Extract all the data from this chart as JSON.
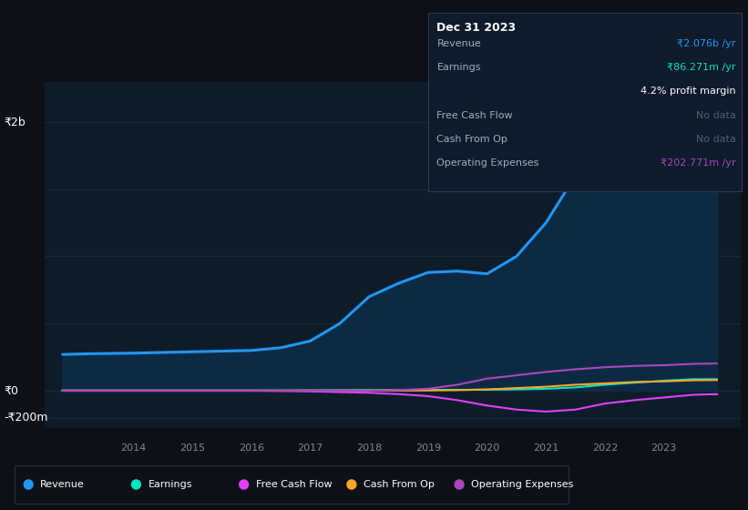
{
  "background_color": "#0d1117",
  "plot_bg_color": "#0e1c2a",
  "grid_color": "#1c2e3e",
  "ylabel_top": "₹2b",
  "ylabel_zero": "₹0",
  "ylabel_bottom": "-₹200m",
  "legend_items": [
    "Revenue",
    "Earnings",
    "Free Cash Flow",
    "Cash From Op",
    "Operating Expenses"
  ],
  "legend_colors": [
    "#2196f3",
    "#00e5c3",
    "#e040fb",
    "#ffa726",
    "#ab47bc"
  ],
  "revenue_color": "#2196f3",
  "revenue_fill": "#0d2a45",
  "earnings_color": "#00e5c3",
  "free_cash_flow_color": "#e040fb",
  "cash_from_op_color": "#ffa726",
  "operating_expenses_color": "#ab47bc",
  "x": [
    2012.8,
    2013.2,
    2013.7,
    2014.0,
    2014.5,
    2015.0,
    2015.5,
    2016.0,
    2016.5,
    2017.0,
    2017.5,
    2018.0,
    2018.5,
    2019.0,
    2019.5,
    2020.0,
    2020.5,
    2021.0,
    2021.5,
    2022.0,
    2022.5,
    2023.0,
    2023.5,
    2023.9
  ],
  "revenue": [
    270,
    275,
    278,
    280,
    285,
    290,
    295,
    300,
    320,
    370,
    500,
    700,
    800,
    880,
    890,
    870,
    1000,
    1250,
    1600,
    1750,
    1800,
    1900,
    2050,
    2076
  ],
  "earnings": [
    2,
    2,
    2,
    2,
    2,
    2,
    2,
    2,
    2,
    3,
    4,
    5,
    5,
    6,
    7,
    8,
    10,
    15,
    25,
    45,
    60,
    75,
    86,
    86
  ],
  "free_cash_flow": [
    0,
    0,
    0,
    0,
    0,
    0,
    0,
    0,
    -2,
    -5,
    -10,
    -15,
    -25,
    -40,
    -70,
    -110,
    -140,
    -155,
    -140,
    -95,
    -70,
    -50,
    -30,
    -25
  ],
  "cash_from_op": [
    2,
    2,
    2,
    2,
    2,
    2,
    2,
    2,
    2,
    2,
    2,
    2,
    2,
    3,
    5,
    10,
    20,
    30,
    45,
    55,
    65,
    70,
    78,
    80
  ],
  "operating_expenses": [
    0,
    0,
    0,
    0,
    0,
    0,
    0,
    0,
    0,
    0,
    0,
    0,
    5,
    15,
    45,
    90,
    115,
    140,
    160,
    175,
    185,
    190,
    200,
    203
  ],
  "ylim": [
    -280,
    2300
  ],
  "xlim": [
    2012.5,
    2024.3
  ],
  "x_tick_labels": [
    2014,
    2015,
    2016,
    2017,
    2018,
    2019,
    2020,
    2021,
    2022,
    2023
  ],
  "tooltip": {
    "title": "Dec 31 2023",
    "rows": [
      {
        "label": "Revenue",
        "value": "₹2.076b /yr",
        "value_color": "#2196f3",
        "sep": true
      },
      {
        "label": "Earnings",
        "value": "₹86.271m /yr",
        "value_color": "#00e5c3",
        "sep": false
      },
      {
        "label": "",
        "value": "4.2% profit margin",
        "value_color": "#ffffff",
        "sep": true
      },
      {
        "label": "Free Cash Flow",
        "value": "No data",
        "value_color": "#555e6b",
        "sep": true
      },
      {
        "label": "Cash From Op",
        "value": "No data",
        "value_color": "#555e6b",
        "sep": true
      },
      {
        "label": "Operating Expenses",
        "value": "₹202.771m /yr",
        "value_color": "#ab47bc",
        "sep": false
      }
    ]
  }
}
